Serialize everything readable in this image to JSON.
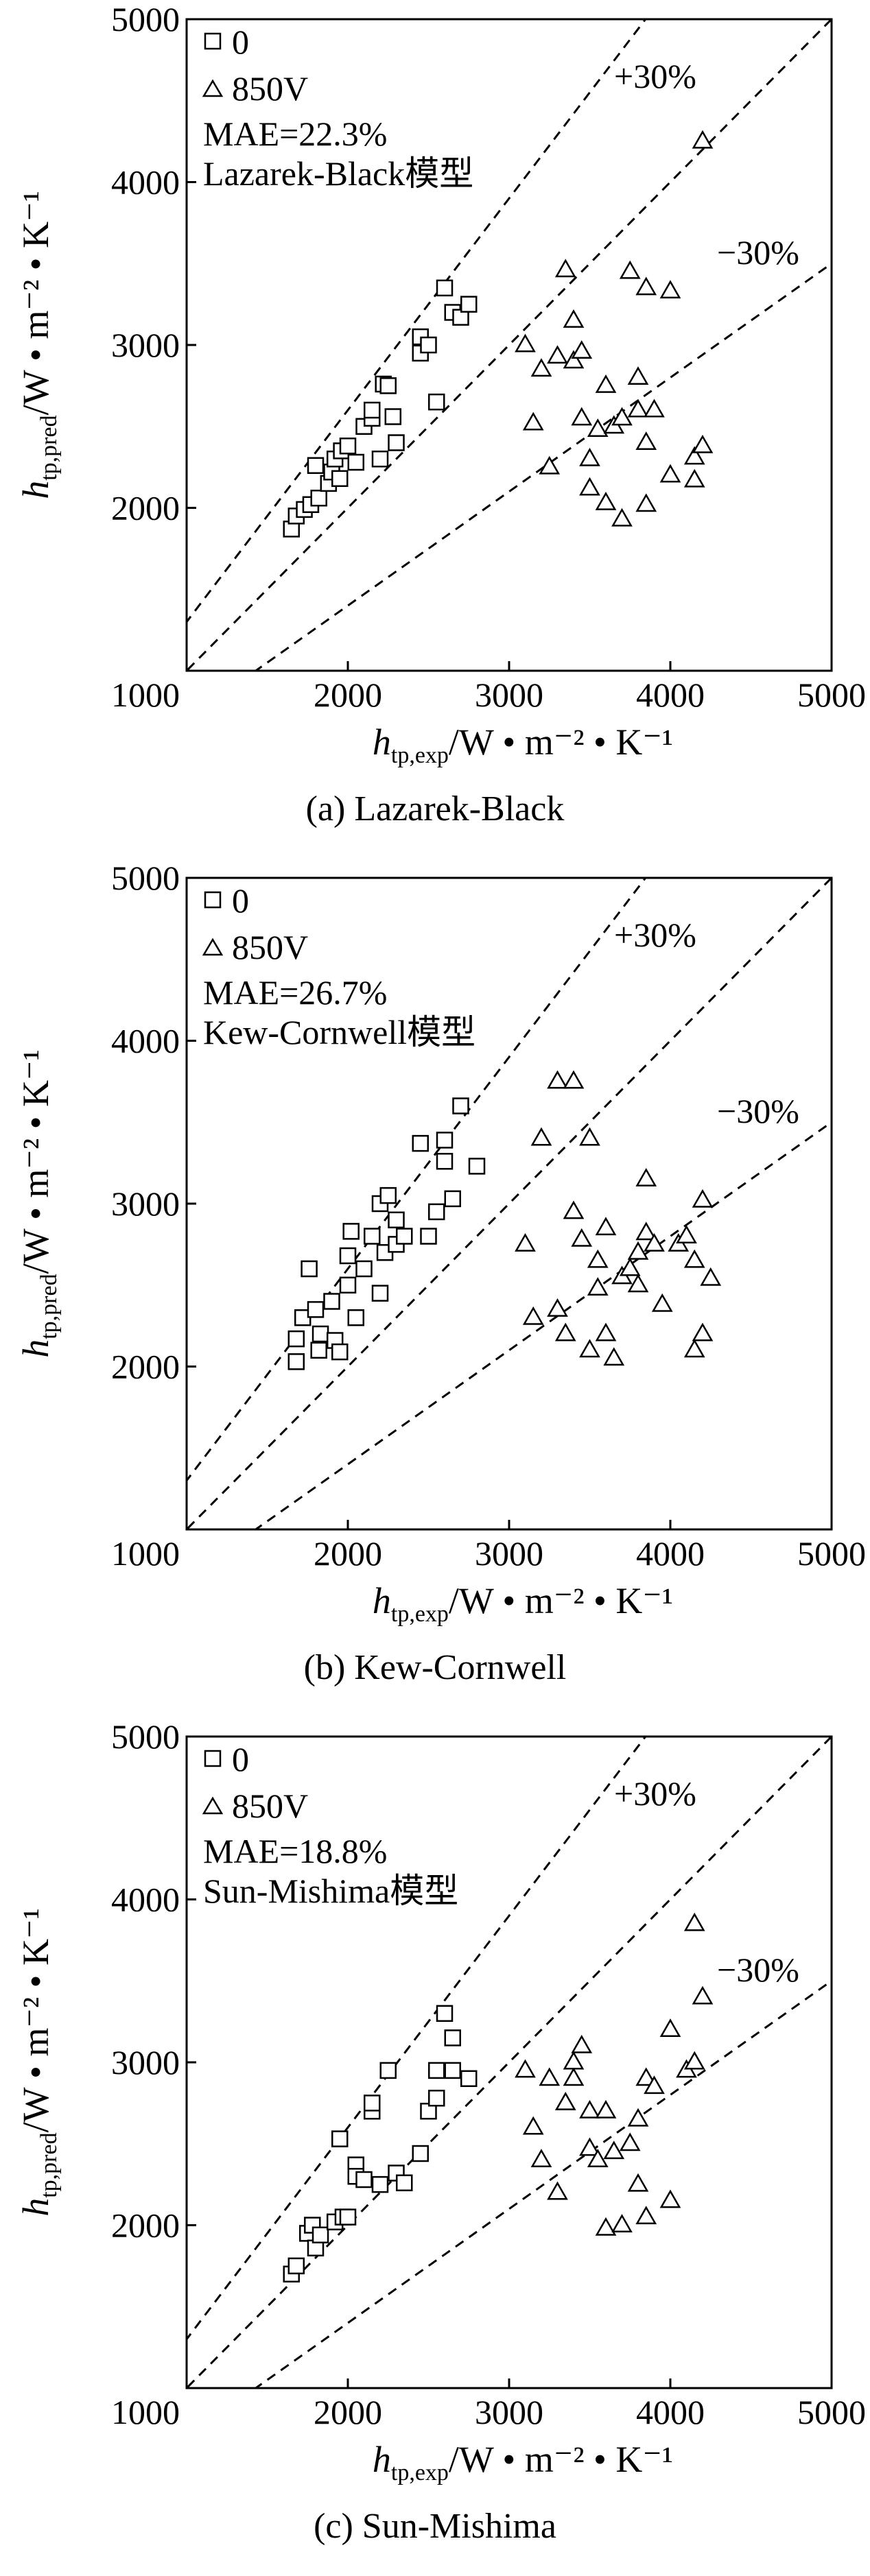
{
  "chart_data": [
    {
      "type": "scatter",
      "caption": "(a) Lazarek-Black",
      "model_label": "Lazarek-Black模型",
      "mae_label": "MAE=22.3%",
      "xlabel_main": "h",
      "xlabel_sub": "tp,exp",
      "ylabel_main": "h",
      "ylabel_sub": "tp,pred",
      "unit_label": "/W • m⁻² • K⁻¹",
      "xlim": [
        1000,
        5000
      ],
      "ylim": [
        1000,
        5000
      ],
      "xticks": [
        "2000",
        "3000",
        "4000",
        "5000"
      ],
      "yticks": [
        "2000",
        "3000",
        "4000",
        "5000"
      ],
      "origin_label": "1000",
      "grid": false,
      "legend_position": "top-left",
      "lines": [
        {
          "name": "+30%",
          "slope": 1.3,
          "style": "dashed"
        },
        {
          "name": "",
          "slope": 1.0,
          "style": "dashed"
        },
        {
          "name": "−30%",
          "slope": 0.7,
          "style": "dashed"
        }
      ],
      "series": [
        {
          "name": "0",
          "marker": "square",
          "points": [
            [
              1650,
              1870
            ],
            [
              1680,
              1950
            ],
            [
              1730,
              1990
            ],
            [
              1770,
              2020
            ],
            [
              1820,
              2060
            ],
            [
              1800,
              2260
            ],
            [
              1880,
              2150
            ],
            [
              1900,
              2220
            ],
            [
              1920,
              2300
            ],
            [
              1950,
              2180
            ],
            [
              1960,
              2350
            ],
            [
              2000,
              2380
            ],
            [
              2050,
              2280
            ],
            [
              2100,
              2500
            ],
            [
              2150,
              2550
            ],
            [
              2150,
              2600
            ],
            [
              2200,
              2300
            ],
            [
              2220,
              2760
            ],
            [
              2250,
              2750
            ],
            [
              2300,
              2400
            ],
            [
              2280,
              2560
            ],
            [
              2450,
              2950
            ],
            [
              2450,
              3050
            ],
            [
              2500,
              3000
            ],
            [
              2550,
              2650
            ],
            [
              2600,
              3350
            ],
            [
              2650,
              3200
            ],
            [
              2700,
              3170
            ],
            [
              2750,
              3250
            ]
          ]
        },
        {
          "name": "850V",
          "marker": "triangle",
          "points": [
            [
              3100,
              3000
            ],
            [
              3150,
              2520
            ],
            [
              3200,
              2850
            ],
            [
              3250,
              2250
            ],
            [
              3300,
              2930
            ],
            [
              3350,
              3460
            ],
            [
              3400,
              2900
            ],
            [
              3400,
              3150
            ],
            [
              3450,
              2960
            ],
            [
              3450,
              2550
            ],
            [
              3500,
              2120
            ],
            [
              3500,
              2300
            ],
            [
              3550,
              2480
            ],
            [
              3600,
              2750
            ],
            [
              3600,
              2030
            ],
            [
              3650,
              2500
            ],
            [
              3700,
              1930
            ],
            [
              3700,
              2550
            ],
            [
              3750,
              3450
            ],
            [
              3800,
              2800
            ],
            [
              3800,
              2600
            ],
            [
              3850,
              2020
            ],
            [
              3850,
              2400
            ],
            [
              3850,
              3350
            ],
            [
              3900,
              2600
            ],
            [
              4000,
              2200
            ],
            [
              4000,
              3330
            ],
            [
              4150,
              2310
            ],
            [
              4150,
              2170
            ],
            [
              4200,
              4250
            ],
            [
              4200,
              2380
            ]
          ]
        }
      ]
    },
    {
      "type": "scatter",
      "caption": "(b) Kew-Cornwell",
      "model_label": "Kew-Cornwell模型",
      "mae_label": "MAE=26.7%",
      "xlabel_main": "h",
      "xlabel_sub": "tp,exp",
      "ylabel_main": "h",
      "ylabel_sub": "tp,pred",
      "unit_label": "/W • m⁻² • K⁻¹",
      "xlim": [
        1000,
        5000
      ],
      "ylim": [
        1000,
        5000
      ],
      "xticks": [
        "2000",
        "3000",
        "4000",
        "5000"
      ],
      "yticks": [
        "2000",
        "3000",
        "4000",
        "5000"
      ],
      "origin_label": "1000",
      "grid": false,
      "legend_position": "top-left",
      "lines": [
        {
          "name": "+30%",
          "slope": 1.3,
          "style": "dashed"
        },
        {
          "name": "",
          "slope": 1.0,
          "style": "dashed"
        },
        {
          "name": "−30%",
          "slope": 0.7,
          "style": "dashed"
        }
      ],
      "series": [
        {
          "name": "0",
          "marker": "square",
          "points": [
            [
              1680,
              2030
            ],
            [
              1680,
              2170
            ],
            [
              1720,
              2300
            ],
            [
              1760,
              2600
            ],
            [
              1800,
              2350
            ],
            [
              1820,
              2100
            ],
            [
              1830,
              2200
            ],
            [
              1900,
              2400
            ],
            [
              1920,
              2160
            ],
            [
              1950,
              2090
            ],
            [
              2000,
              2500
            ],
            [
              2000,
              2680
            ],
            [
              2020,
              2830
            ],
            [
              2050,
              2300
            ],
            [
              2100,
              2600
            ],
            [
              2150,
              2800
            ],
            [
              2200,
              2450
            ],
            [
              2200,
              3000
            ],
            [
              2230,
              2700
            ],
            [
              2250,
              3050
            ],
            [
              2300,
              2750
            ],
            [
              2300,
              2900
            ],
            [
              2350,
              2800
            ],
            [
              2450,
              3370
            ],
            [
              2500,
              2800
            ],
            [
              2550,
              2950
            ],
            [
              2600,
              3260
            ],
            [
              2600,
              3390
            ],
            [
              2650,
              3030
            ],
            [
              2700,
              3600
            ],
            [
              2800,
              3230
            ]
          ]
        },
        {
          "name": "850V",
          "marker": "triangle",
          "points": [
            [
              3100,
              2750
            ],
            [
              3150,
              2300
            ],
            [
              3200,
              3400
            ],
            [
              3300,
              3750
            ],
            [
              3300,
              2350
            ],
            [
              3350,
              2200
            ],
            [
              3400,
              3750
            ],
            [
              3400,
              2950
            ],
            [
              3450,
              2780
            ],
            [
              3500,
              3400
            ],
            [
              3500,
              2100
            ],
            [
              3550,
              2650
            ],
            [
              3550,
              2480
            ],
            [
              3600,
              2200
            ],
            [
              3600,
              2850
            ],
            [
              3650,
              2050
            ],
            [
              3700,
              2550
            ],
            [
              3750,
              2600
            ],
            [
              3800,
              2700
            ],
            [
              3800,
              2500
            ],
            [
              3850,
              2820
            ],
            [
              3850,
              3150
            ],
            [
              3900,
              2750
            ],
            [
              3950,
              2380
            ],
            [
              4050,
              2750
            ],
            [
              4100,
              2800
            ],
            [
              4150,
              2650
            ],
            [
              4150,
              2100
            ],
            [
              4200,
              3020
            ],
            [
              4200,
              2200
            ],
            [
              4250,
              2540
            ]
          ]
        }
      ]
    },
    {
      "type": "scatter",
      "caption": "(c) Sun-Mishima",
      "model_label": "Sun-Mishima模型",
      "mae_label": "MAE=18.8%",
      "xlabel_main": "h",
      "xlabel_sub": "tp,exp",
      "ylabel_main": "h",
      "ylabel_sub": "tp,pred",
      "unit_label": "/W • m⁻² • K⁻¹",
      "xlim": [
        1000,
        5000
      ],
      "ylim": [
        1000,
        5000
      ],
      "xticks": [
        "2000",
        "3000",
        "4000",
        "5000"
      ],
      "yticks": [
        "2000",
        "3000",
        "4000",
        "5000"
      ],
      "origin_label": "1000",
      "grid": false,
      "legend_position": "top-left",
      "lines": [
        {
          "name": "+30%",
          "slope": 1.3,
          "style": "dashed"
        },
        {
          "name": "",
          "slope": 1.0,
          "style": "dashed"
        },
        {
          "name": "−30%",
          "slope": 0.7,
          "style": "dashed"
        }
      ],
      "series": [
        {
          "name": "0",
          "marker": "square",
          "points": [
            [
              1650,
              1700
            ],
            [
              1680,
              1750
            ],
            [
              1750,
              1950
            ],
            [
              1780,
              2000
            ],
            [
              1800,
              1860
            ],
            [
              1830,
              1940
            ],
            [
              1920,
              2020
            ],
            [
              1950,
              2530
            ],
            [
              1970,
              2050
            ],
            [
              2000,
              2050
            ],
            [
              2050,
              2370
            ],
            [
              2050,
              2300
            ],
            [
              2100,
              2280
            ],
            [
              2150,
              2700
            ],
            [
              2150,
              2750
            ],
            [
              2200,
              2250
            ],
            [
              2250,
              2950
            ],
            [
              2300,
              2320
            ],
            [
              2350,
              2260
            ],
            [
              2450,
              2440
            ],
            [
              2500,
              2700
            ],
            [
              2550,
              2780
            ],
            [
              2550,
              2950
            ],
            [
              2600,
              3300
            ],
            [
              2650,
              3150
            ],
            [
              2650,
              2950
            ],
            [
              2750,
              2900
            ]
          ]
        },
        {
          "name": "850V",
          "marker": "triangle",
          "points": [
            [
              3100,
              2950
            ],
            [
              3150,
              2600
            ],
            [
              3200,
              2400
            ],
            [
              3250,
              2900
            ],
            [
              3300,
              2200
            ],
            [
              3350,
              2750
            ],
            [
              3400,
              2900
            ],
            [
              3400,
              3000
            ],
            [
              3450,
              3100
            ],
            [
              3500,
              2700
            ],
            [
              3500,
              2470
            ],
            [
              3550,
              2400
            ],
            [
              3600,
              2700
            ],
            [
              3600,
              1980
            ],
            [
              3650,
              2450
            ],
            [
              3700,
              2000
            ],
            [
              3750,
              2500
            ],
            [
              3800,
              2650
            ],
            [
              3800,
              2250
            ],
            [
              3850,
              2050
            ],
            [
              3850,
              2900
            ],
            [
              3900,
              2850
            ],
            [
              4000,
              2150
            ],
            [
              4000,
              3200
            ],
            [
              4100,
              2950
            ],
            [
              4150,
              3850
            ],
            [
              4150,
              3000
            ],
            [
              4200,
              3400
            ]
          ]
        }
      ]
    }
  ]
}
